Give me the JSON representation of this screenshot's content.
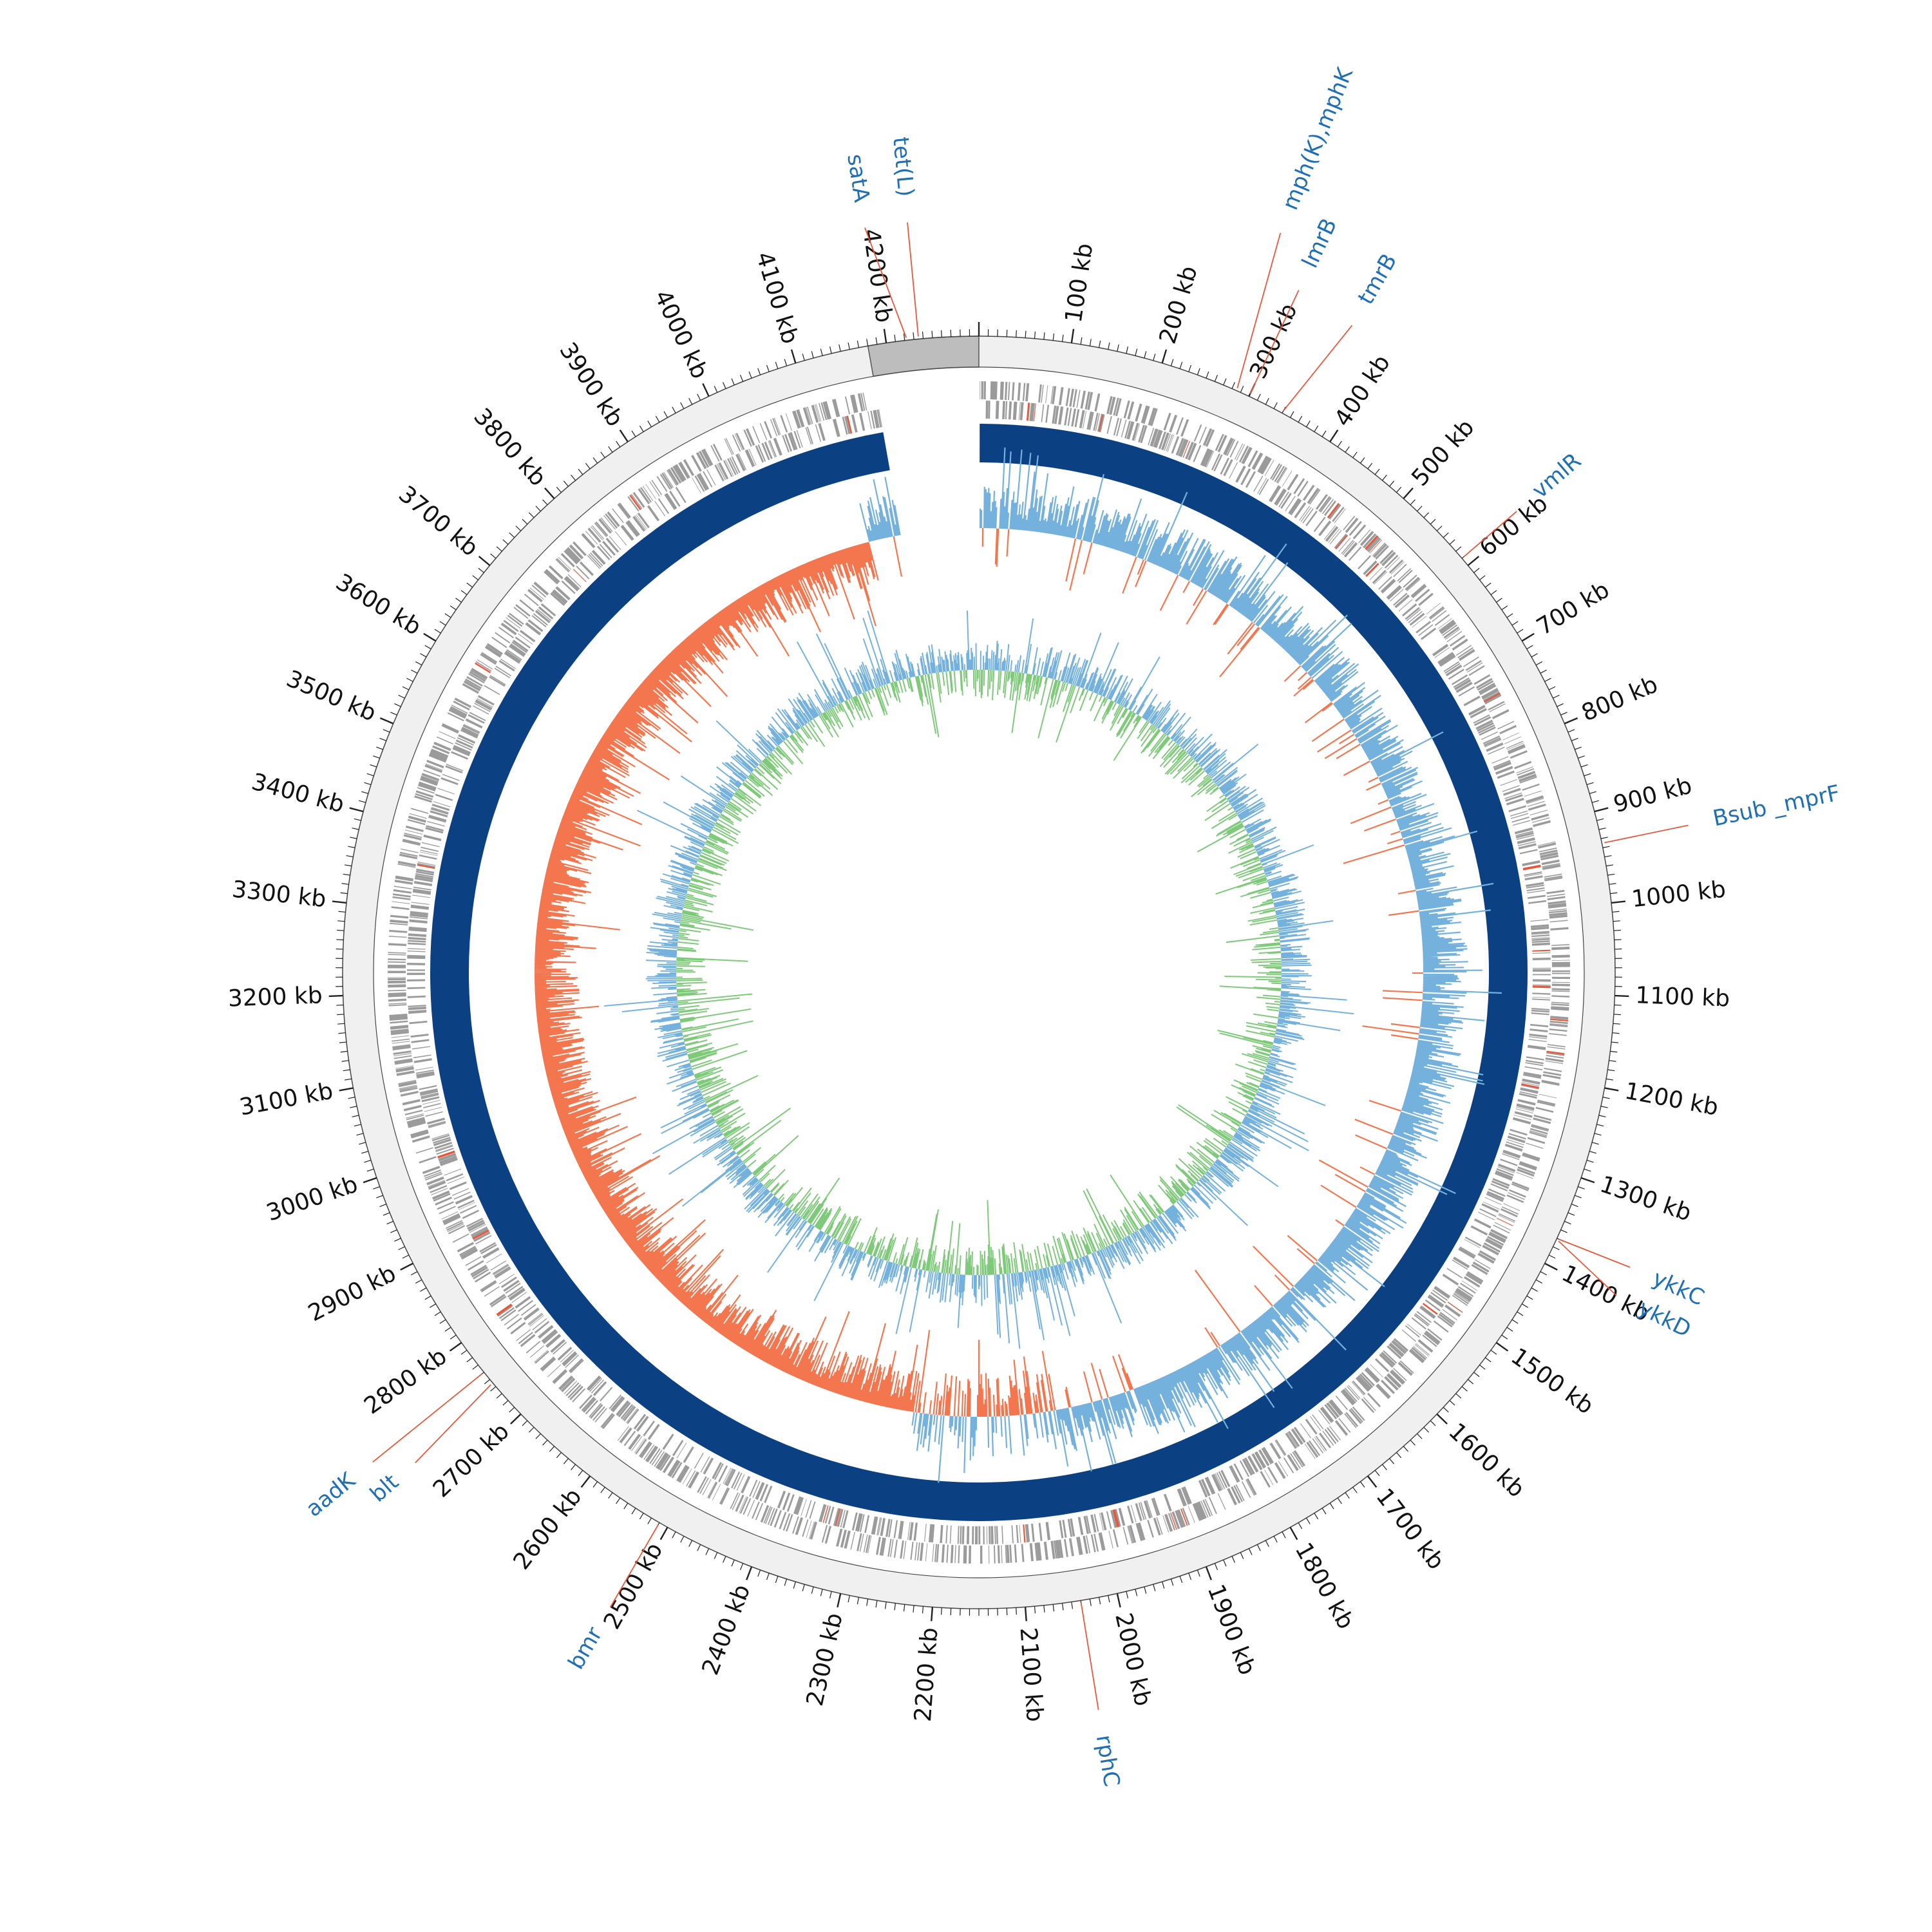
{
  "genome_map": {
    "genome_length_kb": 4300,
    "tick_label_suffix": " kb",
    "tick_labels": [
      {
        "kb": 100,
        "text": "100 kb"
      },
      {
        "kb": 200,
        "text": "200 kb"
      },
      {
        "kb": 300,
        "text": "300 kb"
      },
      {
        "kb": 400,
        "text": "400 kb"
      },
      {
        "kb": 500,
        "text": "500 kb"
      },
      {
        "kb": 600,
        "text": "600 kb"
      },
      {
        "kb": 700,
        "text": "700 kb"
      },
      {
        "kb": 800,
        "text": "800 kb"
      },
      {
        "kb": 900,
        "text": "900 kb"
      },
      {
        "kb": 1000,
        "text": "1000 kb"
      },
      {
        "kb": 1100,
        "text": "1100 kb"
      },
      {
        "kb": 1200,
        "text": "1200 kb"
      },
      {
        "kb": 1300,
        "text": "1300 kb"
      },
      {
        "kb": 1400,
        "text": "1400 kb"
      },
      {
        "kb": 1500,
        "text": "1500 kb"
      },
      {
        "kb": 1600,
        "text": "1600 kb"
      },
      {
        "kb": 1700,
        "text": "1700 kb"
      },
      {
        "kb": 1800,
        "text": "1800 kb"
      },
      {
        "kb": 1900,
        "text": "1900 kb"
      },
      {
        "kb": 2000,
        "text": "2000 kb"
      },
      {
        "kb": 2100,
        "text": "2100 kb"
      },
      {
        "kb": 2200,
        "text": "2200 kb"
      },
      {
        "kb": 2300,
        "text": "2300 kb"
      },
      {
        "kb": 2400,
        "text": "2400 kb"
      },
      {
        "kb": 2500,
        "text": "2500 kb"
      },
      {
        "kb": 2600,
        "text": "2600 kb"
      },
      {
        "kb": 2700,
        "text": "2700 kb"
      },
      {
        "kb": 2800,
        "text": "2800 kb"
      },
      {
        "kb": 2900,
        "text": "2900 kb"
      },
      {
        "kb": 3000,
        "text": "3000 kb"
      },
      {
        "kb": 3100,
        "text": "3100 kb"
      },
      {
        "kb": 3200,
        "text": "3200 kb"
      },
      {
        "kb": 3300,
        "text": "3300 kb"
      },
      {
        "kb": 3400,
        "text": "3400 kb"
      },
      {
        "kb": 3500,
        "text": "3500 kb"
      },
      {
        "kb": 3600,
        "text": "3600 kb"
      },
      {
        "kb": 3700,
        "text": "3700 kb"
      },
      {
        "kb": 3800,
        "text": "3800 kb"
      },
      {
        "kb": 3900,
        "text": "3900 kb"
      },
      {
        "kb": 4000,
        "text": "4000 kb"
      },
      {
        "kb": 4100,
        "text": "4100 kb"
      },
      {
        "kb": 4200,
        "text": "4200 kb"
      }
    ],
    "gene_labels": [
      {
        "name": "tet(L)",
        "kb": 4235
      },
      {
        "name": "satA",
        "kb": 4222
      },
      {
        "name": "mph(K),mphK",
        "kb": 285
      },
      {
        "name": "lmrB",
        "kb": 300
      },
      {
        "name": "tmrB",
        "kb": 340
      },
      {
        "name": "vmlR",
        "kb": 590
      },
      {
        "name": "Bsub _mprF",
        "kb": 935
      },
      {
        "name": "ykkC",
        "kb": 1370
      },
      {
        "name": "ykkD",
        "kb": 1372
      },
      {
        "name": "rphC",
        "kb": 2040
      },
      {
        "name": "bmr",
        "kb": 2510
      },
      {
        "name": "aadK",
        "kb": 2760
      },
      {
        "name": "blt",
        "kb": 2745
      }
    ],
    "colors": {
      "backbone_ring": "#0b4182",
      "gc_content_high": "#74b1dc",
      "gc_content_low": "#f4764f",
      "gc_skew_positive": "#74b1dc",
      "gc_skew_negative": "#7fc97a",
      "cds_features": "#9b9b9b",
      "resistance_marker": "#e8573a",
      "gene_label_text": "#1f6fb4",
      "outer_ring_fill": "#f0f0f0"
    }
  }
}
